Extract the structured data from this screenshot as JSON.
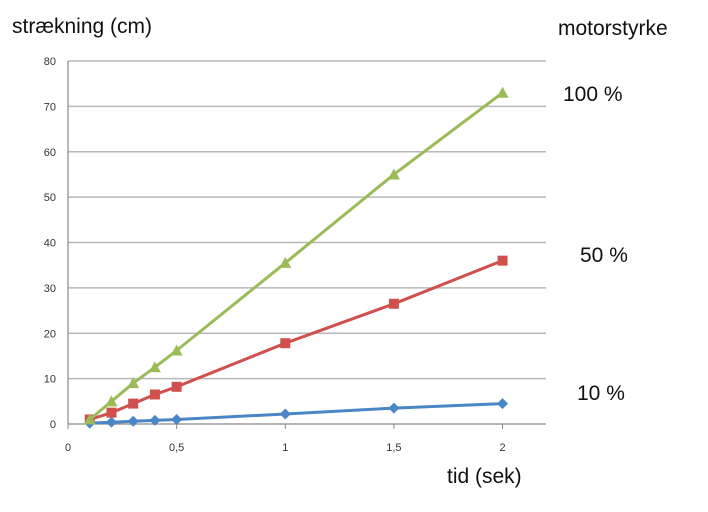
{
  "chart_data": {
    "type": "line",
    "title": "",
    "ylabel": "strækning (cm)",
    "xlabel": "tid (sek)",
    "legend_title": "motorstyrke",
    "xlim": [
      0,
      2.2
    ],
    "ylim": [
      0,
      80
    ],
    "x_ticks": [
      {
        "value": 0,
        "label": "0"
      },
      {
        "value": 0.5,
        "label": "0,5"
      },
      {
        "value": 1,
        "label": "1"
      },
      {
        "value": 1.5,
        "label": "1,5"
      },
      {
        "value": 2,
        "label": "2"
      }
    ],
    "y_ticks": [
      {
        "value": 0,
        "label": "0"
      },
      {
        "value": 10,
        "label": "10"
      },
      {
        "value": 20,
        "label": "20"
      },
      {
        "value": 30,
        "label": "30"
      },
      {
        "value": 40,
        "label": "40"
      },
      {
        "value": 50,
        "label": "50"
      },
      {
        "value": 60,
        "label": "60"
      },
      {
        "value": 70,
        "label": "70"
      },
      {
        "value": 80,
        "label": "80"
      }
    ],
    "grid": true,
    "series": [
      {
        "name": "10 %",
        "color": "#4a86c5",
        "marker": "diamond",
        "x": [
          0.1,
          0.2,
          0.3,
          0.4,
          0.5,
          1,
          1.5,
          2
        ],
        "y": [
          0.2,
          0.4,
          0.6,
          0.8,
          1.0,
          2.2,
          3.5,
          4.5
        ]
      },
      {
        "name": "50 %",
        "color": "#d0504e",
        "marker": "square",
        "x": [
          0.1,
          0.2,
          0.3,
          0.4,
          0.5,
          1,
          1.5,
          2
        ],
        "y": [
          1.0,
          2.5,
          4.5,
          6.5,
          8.2,
          17.8,
          26.5,
          36
        ]
      },
      {
        "name": "100 %",
        "color": "#9bbb59",
        "marker": "triangle",
        "x": [
          0.1,
          0.2,
          0.3,
          0.4,
          0.5,
          1,
          1.5,
          2
        ],
        "y": [
          1.0,
          5.0,
          9.0,
          12.5,
          16.2,
          35.5,
          55,
          73
        ]
      }
    ]
  }
}
